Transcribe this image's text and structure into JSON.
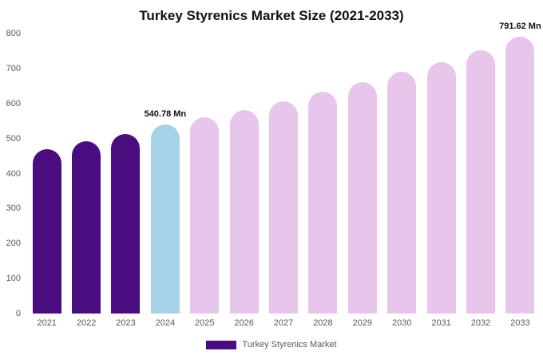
{
  "chart_data": {
    "type": "bar",
    "title": "Turkey Styrenics Market Size (2021-2033)",
    "xlabel": "",
    "ylabel": "",
    "categories": [
      "2021",
      "2022",
      "2023",
      "2024",
      "2025",
      "2026",
      "2027",
      "2028",
      "2029",
      "2030",
      "2031",
      "2032",
      "2033"
    ],
    "values": [
      470,
      492,
      512,
      540.78,
      560,
      582,
      606,
      633,
      661,
      690,
      719,
      752,
      791.62
    ],
    "bar_colors": [
      "#4a0d7f",
      "#4a0d7f",
      "#4a0d7f",
      "#a5d2e8",
      "#e8c6eb",
      "#e8c6eb",
      "#e8c6eb",
      "#e8c6eb",
      "#e8c6eb",
      "#e8c6eb",
      "#e8c6eb",
      "#e8c6eb",
      "#e8c6eb"
    ],
    "annotations": [
      {
        "index": 3,
        "text": "540.78 Mn"
      },
      {
        "index": 12,
        "text": "791.62 Mn"
      }
    ],
    "ylim": [
      0,
      800
    ],
    "yticks": [
      0,
      100,
      200,
      300,
      400,
      500,
      600,
      700,
      800
    ],
    "grid": false,
    "legend_position": "bottom",
    "legend": [
      {
        "label": "Turkey Styrenics Market",
        "color": "#4a0d7f"
      }
    ],
    "colors": {
      "historical": "#4a0d7f",
      "current_year": "#a5d2e8",
      "forecast": "#e8c6eb"
    }
  }
}
